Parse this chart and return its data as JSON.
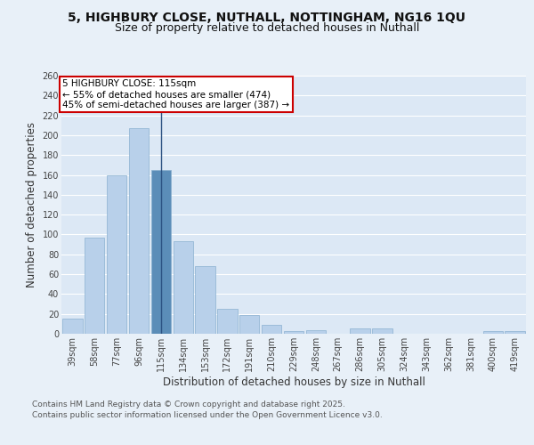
{
  "title_line1": "5, HIGHBURY CLOSE, NUTHALL, NOTTINGHAM, NG16 1QU",
  "title_line2": "Size of property relative to detached houses in Nuthall",
  "xlabel": "Distribution of detached houses by size in Nuthall",
  "ylabel": "Number of detached properties",
  "categories": [
    "39sqm",
    "58sqm",
    "77sqm",
    "96sqm",
    "115sqm",
    "134sqm",
    "153sqm",
    "172sqm",
    "191sqm",
    "210sqm",
    "229sqm",
    "248sqm",
    "267sqm",
    "286sqm",
    "305sqm",
    "324sqm",
    "343sqm",
    "362sqm",
    "381sqm",
    "400sqm",
    "419sqm"
  ],
  "values": [
    15,
    97,
    160,
    207,
    165,
    93,
    68,
    25,
    19,
    9,
    3,
    4,
    0,
    5,
    5,
    0,
    0,
    0,
    0,
    3,
    3
  ],
  "highlight_index": 4,
  "bar_color": "#b8d0ea",
  "highlight_bar_color": "#5b8db8",
  "bar_edge_color": "#8ab0d0",
  "annotation_text": "5 HIGHBURY CLOSE: 115sqm\n← 55% of detached houses are smaller (474)\n45% of semi-detached houses are larger (387) →",
  "annotation_box_color": "#ffffff",
  "annotation_box_edge": "#cc0000",
  "vline_color": "#2c5282",
  "ylim": [
    0,
    260
  ],
  "yticks": [
    0,
    20,
    40,
    60,
    80,
    100,
    120,
    140,
    160,
    180,
    200,
    220,
    240,
    260
  ],
  "bg_color": "#e8f0f8",
  "plot_bg": "#dce8f5",
  "grid_color": "#ffffff",
  "footer_line1": "Contains HM Land Registry data © Crown copyright and database right 2025.",
  "footer_line2": "Contains public sector information licensed under the Open Government Licence v3.0.",
  "title_fontsize": 10,
  "subtitle_fontsize": 9,
  "axis_label_fontsize": 8.5,
  "tick_fontsize": 7,
  "annotation_fontsize": 7.5,
  "footer_fontsize": 6.5
}
